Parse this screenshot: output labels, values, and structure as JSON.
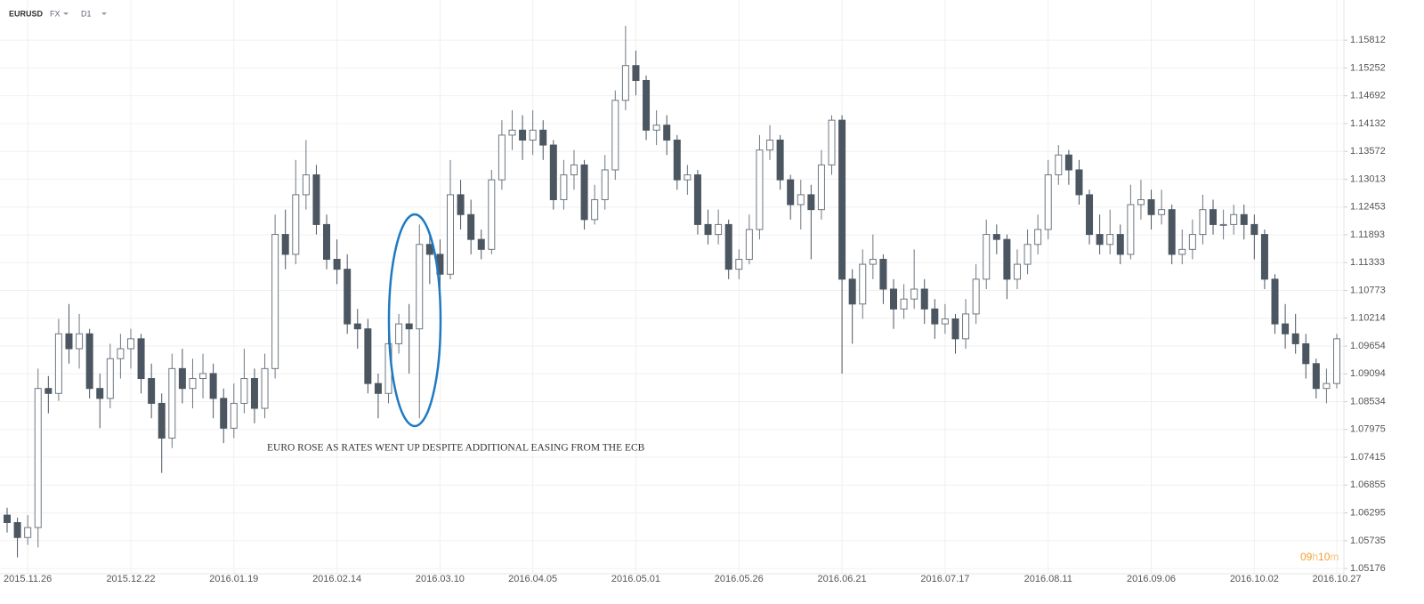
{
  "chart_data": {
    "type": "candlestick",
    "symbol": "EURUSD",
    "market": "FX",
    "timeframe": "D1",
    "annotation": "EURO ROSE AS RATES WENT UP DESPITE ADDITIONAL EASING FROM THE ECB",
    "countdown": [
      "09",
      "h",
      "10",
      "m"
    ],
    "up_color": "#ffffff",
    "down_color": "#4b5661",
    "up_wick_color": "#6e7780",
    "grid": true,
    "ylim": [
      1.0507,
      1.1662
    ],
    "yticks": [
      1.15812,
      1.15252,
      1.14692,
      1.14132,
      1.13572,
      1.13013,
      1.12453,
      1.11893,
      1.11333,
      1.10773,
      1.10214,
      1.09654,
      1.09094,
      1.08534,
      1.07975,
      1.07415,
      1.06855,
      1.06295,
      1.05735,
      1.05176
    ],
    "categories": [
      null,
      null,
      "2015.11.26",
      null,
      null,
      null,
      null,
      null,
      null,
      null,
      null,
      null,
      "2015.12.22",
      null,
      null,
      null,
      null,
      null,
      null,
      null,
      null,
      null,
      "2016.01.19",
      null,
      null,
      null,
      null,
      null,
      null,
      null,
      null,
      null,
      "2016.02.14",
      null,
      null,
      null,
      null,
      null,
      null,
      null,
      null,
      null,
      "2016.03.10",
      null,
      null,
      null,
      null,
      null,
      null,
      null,
      null,
      "2016.04.05",
      null,
      null,
      null,
      null,
      null,
      null,
      null,
      null,
      null,
      "2016.05.01",
      null,
      null,
      null,
      null,
      null,
      null,
      null,
      null,
      null,
      "2016.05.26",
      null,
      null,
      null,
      null,
      null,
      null,
      null,
      null,
      null,
      "2016.06.21",
      null,
      null,
      null,
      null,
      null,
      null,
      null,
      null,
      null,
      "2016.07.17",
      null,
      null,
      null,
      null,
      null,
      null,
      null,
      null,
      null,
      "2016.08.11",
      null,
      null,
      null,
      null,
      null,
      null,
      null,
      null,
      null,
      "2016.09.06",
      null,
      null,
      null,
      null,
      null,
      null,
      null,
      null,
      null,
      "2016.10.02",
      null,
      null,
      null,
      null,
      null,
      null,
      null,
      "2016.10.27"
    ],
    "open": [
      1.0625,
      1.061,
      1.058,
      1.06,
      1.088,
      1.087,
      1.099,
      1.096,
      1.099,
      1.088,
      1.086,
      1.094,
      1.096,
      1.098,
      1.09,
      1.085,
      1.078,
      1.092,
      1.088,
      1.09,
      1.091,
      1.086,
      1.08,
      1.085,
      1.09,
      1.084,
      1.092,
      1.119,
      1.115,
      1.127,
      1.131,
      1.121,
      1.114,
      1.112,
      1.101,
      1.1,
      1.089,
      1.087,
      1.097,
      1.101,
      1.1,
      1.117,
      1.115,
      1.111,
      1.127,
      1.123,
      1.118,
      1.116,
      1.13,
      1.139,
      1.14,
      1.138,
      1.14,
      1.137,
      1.126,
      1.131,
      1.133,
      1.122,
      1.126,
      1.132,
      1.146,
      1.153,
      1.15,
      1.14,
      1.141,
      1.138,
      1.13,
      1.131,
      1.121,
      1.119,
      1.121,
      1.112,
      1.114,
      1.12,
      1.136,
      1.138,
      1.13,
      1.125,
      1.127,
      1.124,
      1.133,
      1.142,
      1.11,
      1.105,
      1.113,
      1.114,
      1.108,
      1.104,
      1.106,
      1.108,
      1.104,
      1.101,
      1.102,
      1.098,
      1.103,
      1.11,
      1.119,
      1.118,
      1.11,
      1.113,
      1.117,
      1.12,
      1.131,
      1.135,
      1.132,
      1.127,
      1.119,
      1.117,
      1.119,
      1.115,
      1.125,
      1.126,
      1.123,
      1.124,
      1.115,
      1.116,
      1.119,
      1.124,
      1.121,
      1.121,
      1.123,
      1.121,
      1.119,
      1.11,
      1.101,
      1.099,
      1.097,
      1.093,
      1.088,
      1.089
    ],
    "high": [
      1.064,
      1.062,
      1.0625,
      1.092,
      1.0905,
      1.102,
      1.105,
      1.103,
      1.1,
      1.091,
      1.097,
      1.099,
      1.1,
      1.099,
      1.093,
      1.087,
      1.095,
      1.096,
      1.094,
      1.095,
      1.093,
      1.088,
      1.089,
      1.096,
      1.092,
      1.095,
      1.123,
      1.124,
      1.134,
      1.138,
      1.133,
      1.123,
      1.118,
      1.115,
      1.104,
      1.102,
      1.091,
      1.099,
      1.103,
      1.105,
      1.121,
      1.119,
      1.118,
      1.134,
      1.13,
      1.126,
      1.12,
      1.132,
      1.142,
      1.144,
      1.143,
      1.144,
      1.142,
      1.138,
      1.134,
      1.136,
      1.134,
      1.129,
      1.135,
      1.148,
      1.161,
      1.156,
      1.151,
      1.144,
      1.143,
      1.139,
      1.133,
      1.132,
      1.124,
      1.124,
      1.122,
      1.116,
      1.123,
      1.139,
      1.141,
      1.139,
      1.131,
      1.13,
      1.129,
      1.136,
      1.143,
      1.143,
      1.112,
      1.116,
      1.119,
      1.115,
      1.11,
      1.109,
      1.116,
      1.11,
      1.106,
      1.105,
      1.103,
      1.106,
      1.113,
      1.122,
      1.121,
      1.119,
      1.116,
      1.12,
      1.123,
      1.134,
      1.137,
      1.136,
      1.134,
      1.128,
      1.123,
      1.124,
      1.121,
      1.129,
      1.13,
      1.128,
      1.128,
      1.125,
      1.12,
      1.122,
      1.127,
      1.126,
      1.124,
      1.125,
      1.125,
      1.123,
      1.12,
      1.111,
      1.105,
      1.103,
      1.099,
      1.094,
      1.092,
      1.099
    ],
    "low": [
      1.059,
      1.054,
      1.0565,
      1.056,
      1.083,
      1.0855,
      1.093,
      1.092,
      1.086,
      1.08,
      1.084,
      1.09,
      1.092,
      1.087,
      1.082,
      1.071,
      1.076,
      1.085,
      1.084,
      1.086,
      1.082,
      1.077,
      1.078,
      1.083,
      1.081,
      1.082,
      1.09,
      1.112,
      1.113,
      1.124,
      1.119,
      1.112,
      1.109,
      1.099,
      1.096,
      1.087,
      1.082,
      1.085,
      1.095,
      1.091,
      1.082,
      1.109,
      1.106,
      1.11,
      1.12,
      1.115,
      1.114,
      1.115,
      1.128,
      1.136,
      1.134,
      1.135,
      1.134,
      1.124,
      1.124,
      1.128,
      1.12,
      1.121,
      1.124,
      1.13,
      1.144,
      1.147,
      1.138,
      1.137,
      1.135,
      1.128,
      1.127,
      1.119,
      1.117,
      1.117,
      1.11,
      1.11,
      1.113,
      1.118,
      1.134,
      1.128,
      1.122,
      1.12,
      1.114,
      1.122,
      1.131,
      1.091,
      1.097,
      1.102,
      1.11,
      1.105,
      1.1,
      1.102,
      1.104,
      1.101,
      1.098,
      1.099,
      1.095,
      1.096,
      1.101,
      1.108,
      1.115,
      1.106,
      1.108,
      1.111,
      1.115,
      1.118,
      1.129,
      1.129,
      1.125,
      1.117,
      1.115,
      1.115,
      1.113,
      1.114,
      1.122,
      1.12,
      1.121,
      1.113,
      1.113,
      1.114,
      1.117,
      1.119,
      1.118,
      1.119,
      1.118,
      1.114,
      1.108,
      1.099,
      1.096,
      1.095,
      1.09,
      1.086,
      1.085,
      1.088
    ],
    "close": [
      1.061,
      1.058,
      1.06,
      1.088,
      1.087,
      1.099,
      1.096,
      1.099,
      1.088,
      1.086,
      1.094,
      1.096,
      1.098,
      1.09,
      1.085,
      1.078,
      1.092,
      1.088,
      1.09,
      1.091,
      1.086,
      1.08,
      1.085,
      1.09,
      1.084,
      1.092,
      1.119,
      1.115,
      1.127,
      1.131,
      1.121,
      1.114,
      1.112,
      1.101,
      1.1,
      1.089,
      1.087,
      1.097,
      1.101,
      1.1,
      1.117,
      1.115,
      1.111,
      1.127,
      1.123,
      1.118,
      1.116,
      1.13,
      1.139,
      1.14,
      1.138,
      1.14,
      1.137,
      1.126,
      1.131,
      1.133,
      1.122,
      1.126,
      1.132,
      1.146,
      1.153,
      1.15,
      1.14,
      1.141,
      1.138,
      1.13,
      1.131,
      1.121,
      1.119,
      1.121,
      1.112,
      1.114,
      1.12,
      1.136,
      1.138,
      1.13,
      1.125,
      1.127,
      1.124,
      1.133,
      1.142,
      1.11,
      1.105,
      1.113,
      1.114,
      1.108,
      1.104,
      1.106,
      1.108,
      1.104,
      1.101,
      1.102,
      1.098,
      1.103,
      1.11,
      1.119,
      1.118,
      1.11,
      1.113,
      1.117,
      1.12,
      1.131,
      1.135,
      1.132,
      1.127,
      1.119,
      1.117,
      1.119,
      1.115,
      1.125,
      1.126,
      1.123,
      1.124,
      1.115,
      1.116,
      1.119,
      1.124,
      1.121,
      1.121,
      1.123,
      1.121,
      1.119,
      1.11,
      1.101,
      1.099,
      1.097,
      1.093,
      1.088,
      1.089,
      1.098
    ]
  }
}
